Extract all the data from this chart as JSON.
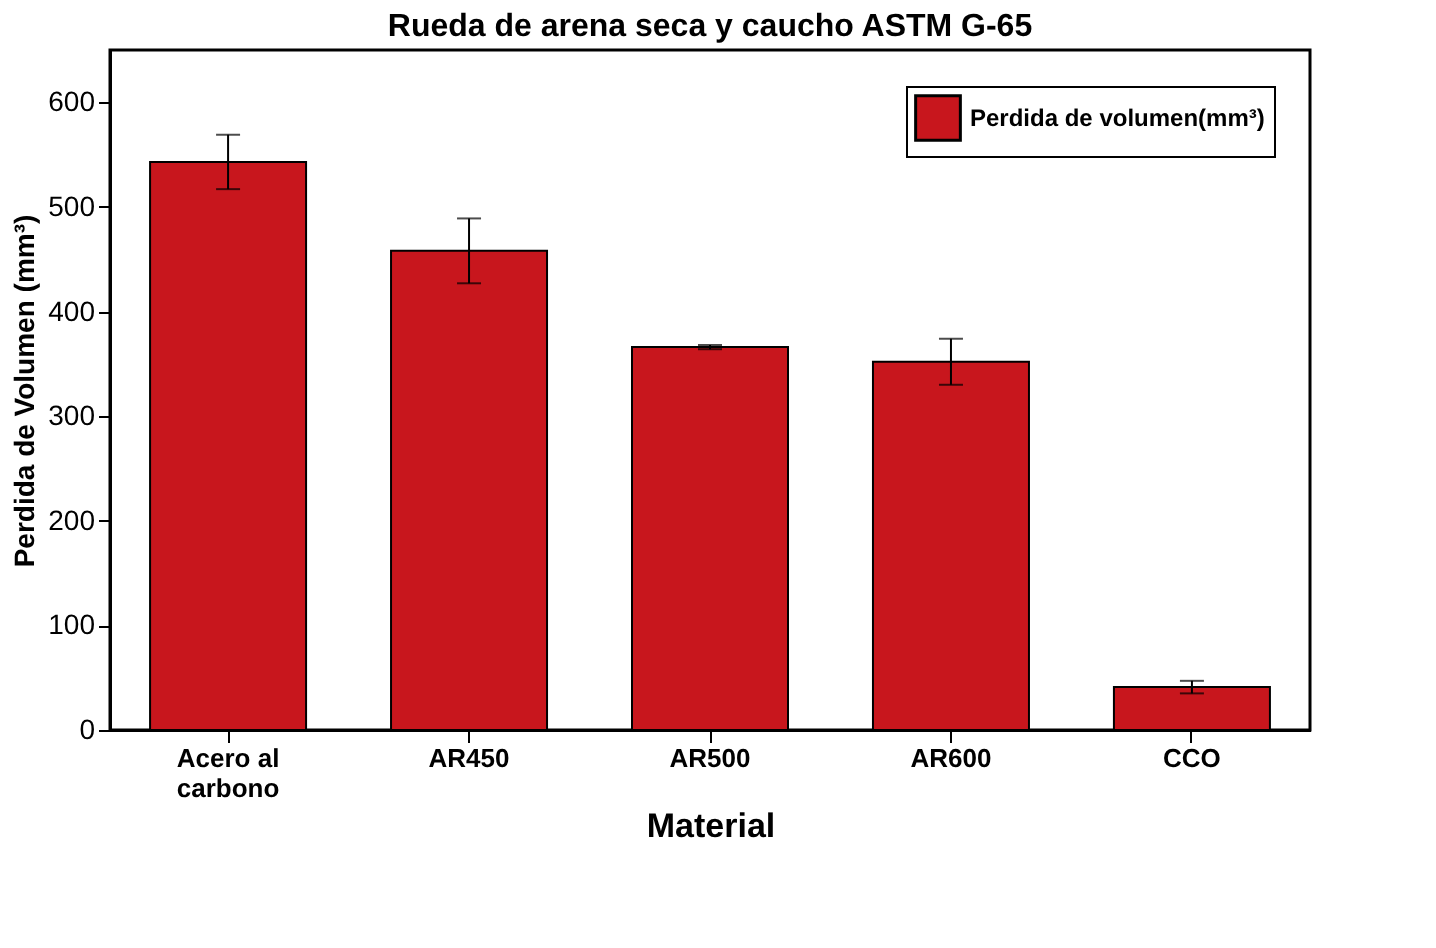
{
  "chart_data": {
    "type": "bar",
    "title": "Rueda de arena seca y caucho ASTM G-65",
    "categories": [
      "Acero al\ncarbono",
      "AR450",
      "AR500",
      "AR600",
      "CCO"
    ],
    "series": [
      {
        "name": "Perdida de volumen(mm³)",
        "color": "#c8161d",
        "values": [
          543,
          458,
          366,
          352,
          41
        ],
        "errors": [
          26,
          31,
          2,
          22,
          6
        ]
      }
    ],
    "xlabel": "Material",
    "ylabel": "Perdida de Volumen (mm³)",
    "ylim": [
      0,
      650
    ],
    "yticks": [
      0,
      100,
      200,
      300,
      400,
      500,
      600
    ],
    "grid": false,
    "legend": "top right"
  }
}
